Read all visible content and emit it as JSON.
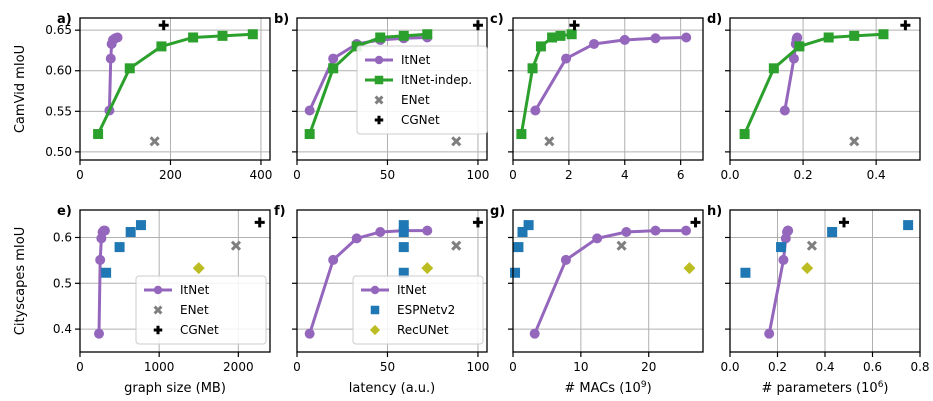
{
  "colors": {
    "itnet": "#9467bd",
    "itnet_indep": "#2ca02c",
    "enet": "#7f7f7f",
    "cgnet": "#000000",
    "espnetv2": "#1f77b4",
    "recunet": "#bcbd22",
    "grid": "#b0b0b0"
  },
  "row_labels": [
    "CamVid mIoU",
    "Cityscapes mIoU"
  ],
  "chart_data": [
    {
      "type": "scatter",
      "panel": "a)",
      "dataset": "CamVid",
      "xlabel": "",
      "ylabel": "CamVid mIoU",
      "xlim": [
        0,
        420
      ],
      "ylim": [
        0.49,
        0.665
      ],
      "xticks": [
        0,
        200,
        400
      ],
      "yticks": [
        0.5,
        0.55,
        0.6,
        0.65
      ],
      "xtick_labels": [
        "0",
        "200",
        "400"
      ],
      "ytick_labels": [
        "0.50",
        "0.55",
        "0.60",
        "0.65"
      ],
      "grid": true,
      "legend": null,
      "series": [
        {
          "name": "ItNet",
          "kind": "line",
          "x": [
            65,
            68,
            70,
            73,
            78,
            83
          ],
          "y": [
            0.551,
            0.615,
            0.633,
            0.638,
            0.64,
            0.641
          ]
        },
        {
          "name": "ItNet-indep.",
          "kind": "line",
          "x": [
            40,
            110,
            180,
            250,
            315,
            382
          ],
          "y": [
            0.522,
            0.603,
            0.63,
            0.641,
            0.643,
            0.645
          ]
        },
        {
          "name": "ENet",
          "kind": "marker",
          "x": [
            165
          ],
          "y": [
            0.513
          ]
        },
        {
          "name": "CGNet",
          "kind": "marker",
          "x": [
            185
          ],
          "y": [
            0.656
          ]
        }
      ]
    },
    {
      "type": "scatter",
      "panel": "b)",
      "dataset": "CamVid",
      "xlabel": "",
      "ylabel": "",
      "xlim": [
        0,
        105
      ],
      "ylim": [
        0.49,
        0.665
      ],
      "xticks": [
        0,
        50,
        100
      ],
      "yticks": [
        0.5,
        0.55,
        0.6,
        0.65
      ],
      "xtick_labels": [
        "0",
        "50",
        "100"
      ],
      "ytick_labels": [],
      "grid": true,
      "legend": "center",
      "series": [
        {
          "name": "ItNet",
          "kind": "line",
          "x": [
            7,
            20,
            33,
            46,
            59,
            72
          ],
          "y": [
            0.551,
            0.615,
            0.633,
            0.638,
            0.64,
            0.641
          ]
        },
        {
          "name": "ItNet-indep.",
          "kind": "line",
          "x": [
            7,
            20,
            33,
            46,
            59,
            72
          ],
          "y": [
            0.522,
            0.603,
            0.63,
            0.641,
            0.643,
            0.645
          ]
        },
        {
          "name": "ENet",
          "kind": "marker",
          "x": [
            88
          ],
          "y": [
            0.513
          ]
        },
        {
          "name": "CGNet",
          "kind": "marker",
          "x": [
            100
          ],
          "y": [
            0.656
          ]
        }
      ]
    },
    {
      "type": "scatter",
      "panel": "c)",
      "dataset": "CamVid",
      "xlabel": "",
      "ylabel": "",
      "xlim": [
        0,
        6.8
      ],
      "ylim": [
        0.49,
        0.665
      ],
      "xticks": [
        0,
        2,
        4,
        6
      ],
      "yticks": [
        0.5,
        0.55,
        0.6,
        0.65
      ],
      "xtick_labels": [
        "0",
        "2",
        "4",
        "6"
      ],
      "ytick_labels": [],
      "grid": true,
      "legend": null,
      "series": [
        {
          "name": "ItNet",
          "kind": "line",
          "x": [
            0.8,
            1.9,
            2.9,
            4.0,
            5.1,
            6.2
          ],
          "y": [
            0.551,
            0.615,
            0.633,
            0.638,
            0.64,
            0.641
          ]
        },
        {
          "name": "ItNet-indep.",
          "kind": "line",
          "x": [
            0.3,
            0.7,
            1.0,
            1.4,
            1.7,
            2.1
          ],
          "y": [
            0.522,
            0.603,
            0.63,
            0.641,
            0.643,
            0.645
          ]
        },
        {
          "name": "ENet",
          "kind": "marker",
          "x": [
            1.3
          ],
          "y": [
            0.513
          ]
        },
        {
          "name": "CGNet",
          "kind": "marker",
          "x": [
            2.2
          ],
          "y": [
            0.656
          ]
        }
      ]
    },
    {
      "type": "scatter",
      "panel": "d)",
      "dataset": "CamVid",
      "xlabel": "",
      "ylabel": "",
      "xlim": [
        0,
        0.52
      ],
      "ylim": [
        0.49,
        0.665
      ],
      "xticks": [
        0,
        0.2,
        0.4
      ],
      "yticks": [
        0.5,
        0.55,
        0.6,
        0.65
      ],
      "xtick_labels": [
        "0.0",
        "0.2",
        "0.4"
      ],
      "ytick_labels": [],
      "grid": true,
      "legend": null,
      "series": [
        {
          "name": "ItNet",
          "kind": "line",
          "x": [
            0.15,
            0.175,
            0.18,
            0.182,
            0.183,
            0.184
          ],
          "y": [
            0.551,
            0.615,
            0.633,
            0.638,
            0.64,
            0.641
          ]
        },
        {
          "name": "ItNet-indep.",
          "kind": "line",
          "x": [
            0.04,
            0.12,
            0.19,
            0.27,
            0.34,
            0.42
          ],
          "y": [
            0.522,
            0.603,
            0.63,
            0.641,
            0.643,
            0.645
          ]
        },
        {
          "name": "ENet",
          "kind": "marker",
          "x": [
            0.34
          ],
          "y": [
            0.513
          ]
        },
        {
          "name": "CGNet",
          "kind": "marker",
          "x": [
            0.48
          ],
          "y": [
            0.656
          ]
        }
      ]
    },
    {
      "type": "scatter",
      "panel": "e)",
      "dataset": "Cityscapes",
      "xlabel": "graph size (MB)",
      "ylabel": "Cityscapes mIoU",
      "xlim": [
        0,
        2400
      ],
      "ylim": [
        0.35,
        0.66
      ],
      "xticks": [
        0,
        1000,
        2000
      ],
      "yticks": [
        0.4,
        0.5,
        0.6
      ],
      "xtick_labels": [
        "0",
        "1000",
        "2000"
      ],
      "ytick_labels": [
        "0.4",
        "0.5",
        "0.6"
      ],
      "grid": true,
      "legend": "lower right",
      "series": [
        {
          "name": "ItNet",
          "kind": "line",
          "x": [
            240,
            255,
            270,
            285,
            300,
            315
          ],
          "y": [
            0.39,
            0.551,
            0.598,
            0.612,
            0.615,
            0.615
          ]
        },
        {
          "name": "ESPNetv2",
          "kind": "marker",
          "x": [
            330,
            500,
            640,
            770
          ],
          "y": [
            0.523,
            0.579,
            0.612,
            0.627
          ]
        },
        {
          "name": "RecUNet",
          "kind": "marker",
          "x": [
            1500
          ],
          "y": [
            0.533
          ]
        },
        {
          "name": "ENet",
          "kind": "marker",
          "x": [
            1970
          ],
          "y": [
            0.582
          ]
        },
        {
          "name": "CGNet",
          "kind": "marker",
          "x": [
            2270
          ],
          "y": [
            0.633
          ]
        }
      ]
    },
    {
      "type": "scatter",
      "panel": "f)",
      "dataset": "Cityscapes",
      "xlabel": "latency (a.u.)",
      "ylabel": "",
      "xlim": [
        0,
        105
      ],
      "ylim": [
        0.35,
        0.66
      ],
      "xticks": [
        0,
        50,
        100
      ],
      "yticks": [
        0.4,
        0.5,
        0.6
      ],
      "xtick_labels": [
        "0",
        "50",
        "100"
      ],
      "ytick_labels": [],
      "grid": true,
      "legend": "lower right",
      "series": [
        {
          "name": "ItNet",
          "kind": "line",
          "x": [
            7,
            20,
            33,
            46,
            59,
            72
          ],
          "y": [
            0.39,
            0.551,
            0.598,
            0.612,
            0.615,
            0.615
          ]
        },
        {
          "name": "ESPNetv2",
          "kind": "marker",
          "x": [
            59,
            59,
            59,
            59
          ],
          "y": [
            0.523,
            0.579,
            0.612,
            0.627
          ]
        },
        {
          "name": "RecUNet",
          "kind": "marker",
          "x": [
            72
          ],
          "y": [
            0.533
          ]
        },
        {
          "name": "ENet",
          "kind": "marker",
          "x": [
            88
          ],
          "y": [
            0.582
          ]
        },
        {
          "name": "CGNet",
          "kind": "marker",
          "x": [
            100
          ],
          "y": [
            0.633
          ]
        }
      ]
    },
    {
      "type": "scatter",
      "panel": "g)",
      "dataset": "Cityscapes",
      "xlabel": "# MACs (10^9)",
      "ylabel": "",
      "xlim": [
        0,
        28
      ],
      "ylim": [
        0.35,
        0.66
      ],
      "xticks": [
        0,
        10,
        20
      ],
      "yticks": [
        0.4,
        0.5,
        0.6
      ],
      "xtick_labels": [
        "0",
        "10",
        "20"
      ],
      "ytick_labels": [],
      "grid": true,
      "legend": null,
      "series": [
        {
          "name": "ItNet",
          "kind": "line",
          "x": [
            3.2,
            7.8,
            12.4,
            16.7,
            21.0,
            25.5
          ],
          "y": [
            0.39,
            0.551,
            0.598,
            0.612,
            0.615,
            0.615
          ]
        },
        {
          "name": "ESPNetv2",
          "kind": "marker",
          "x": [
            0.3,
            0.8,
            1.4,
            2.3
          ],
          "y": [
            0.523,
            0.579,
            0.612,
            0.627
          ]
        },
        {
          "name": "RecUNet",
          "kind": "marker",
          "x": [
            26.0
          ],
          "y": [
            0.533
          ]
        },
        {
          "name": "ENet",
          "kind": "marker",
          "x": [
            16.0
          ],
          "y": [
            0.582
          ]
        },
        {
          "name": "CGNet",
          "kind": "marker",
          "x": [
            26.9
          ],
          "y": [
            0.633
          ]
        }
      ]
    },
    {
      "type": "scatter",
      "panel": "h)",
      "dataset": "Cityscapes",
      "xlabel": "# parameters (10^6)",
      "ylabel": "",
      "xlim": [
        0,
        0.8
      ],
      "ylim": [
        0.35,
        0.66
      ],
      "xticks": [
        0,
        0.2,
        0.4,
        0.6,
        0.8
      ],
      "yticks": [
        0.4,
        0.5,
        0.6
      ],
      "xtick_labels": [
        "0.0",
        "0.2",
        "0.4",
        "0.6",
        "0.8"
      ],
      "ytick_labels": [],
      "grid": true,
      "legend": null,
      "series": [
        {
          "name": "ItNet",
          "kind": "line",
          "x": [
            0.165,
            0.225,
            0.235,
            0.24,
            0.243,
            0.245
          ],
          "y": [
            0.39,
            0.551,
            0.598,
            0.612,
            0.615,
            0.615
          ]
        },
        {
          "name": "ESPNetv2",
          "kind": "marker",
          "x": [
            0.065,
            0.215,
            0.43,
            0.75
          ],
          "y": [
            0.523,
            0.579,
            0.612,
            0.627
          ]
        },
        {
          "name": "RecUNet",
          "kind": "marker",
          "x": [
            0.325
          ],
          "y": [
            0.533
          ]
        },
        {
          "name": "ENet",
          "kind": "marker",
          "x": [
            0.345
          ],
          "y": [
            0.582
          ]
        },
        {
          "name": "CGNet",
          "kind": "marker",
          "x": [
            0.48
          ],
          "y": [
            0.633
          ]
        }
      ]
    }
  ]
}
